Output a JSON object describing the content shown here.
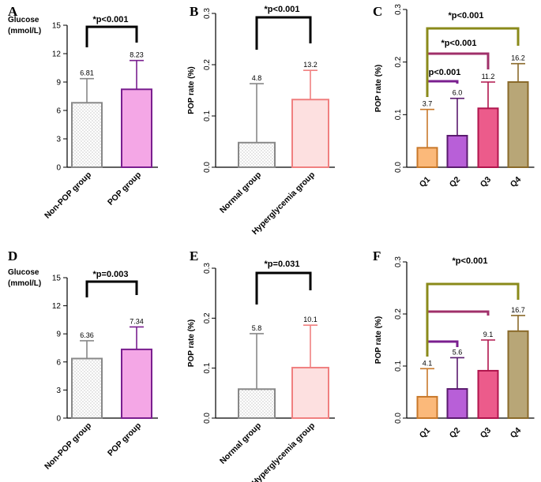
{
  "chart_data": [
    {
      "panel": "A",
      "type": "bar",
      "ylabel_lines": [
        "Glucose",
        "(mmol/L)"
      ],
      "ylabel_style": "top",
      "ylim": [
        0,
        15
      ],
      "yticks": [
        0,
        3,
        6,
        9,
        12,
        15
      ],
      "categories": [
        "Non-POP group",
        "POP group"
      ],
      "values": [
        6.81,
        8.23
      ],
      "errors": [
        2.55,
        3.05
      ],
      "value_labels": [
        "6.81",
        "8.23"
      ],
      "bar_fill": [
        "#ffffff",
        "#f4a7e6"
      ],
      "bar_stroke": [
        "#888888",
        "#7a1f8f"
      ],
      "dotted": [
        true,
        false
      ],
      "brackets": [
        {
          "from": 0,
          "to": 1,
          "label": "*p<0.001",
          "color": "#000000"
        }
      ]
    },
    {
      "panel": "B",
      "type": "bar",
      "ylabel_lines": [
        "POP rate (%)"
      ],
      "ylabel_style": "rotated",
      "ylim": [
        0,
        0.3
      ],
      "yticks": [
        0.0,
        0.1,
        0.2,
        0.3
      ],
      "ytick_labels": [
        "0.0",
        "0.1",
        "0.2",
        "0.3"
      ],
      "categories": [
        "Normal group",
        "Hyperglycemia group"
      ],
      "values": [
        0.048,
        0.132
      ],
      "errors": [
        0.115,
        0.057
      ],
      "value_labels": [
        "4.8",
        "13.2"
      ],
      "bar_fill": [
        "#ffffff",
        "#fde0e0"
      ],
      "bar_stroke": [
        "#888888",
        "#f08080"
      ],
      "dotted": [
        true,
        false
      ],
      "brackets": [
        {
          "from": 0,
          "to": 1,
          "label": "*p<0.001",
          "color": "#000000"
        }
      ]
    },
    {
      "panel": "C",
      "type": "bar",
      "ylabel_lines": [
        "POP rate (%)"
      ],
      "ylabel_style": "rotated",
      "ylim": [
        0,
        0.3
      ],
      "yticks": [
        0.0,
        0.1,
        0.2,
        0.3
      ],
      "ytick_labels": [
        "0.0",
        "0.1",
        "0.2",
        "0.3"
      ],
      "categories": [
        "Q1",
        "Q2",
        "Q3",
        "Q4"
      ],
      "values": [
        0.037,
        0.06,
        0.112,
        0.162
      ],
      "errors": [
        0.073,
        0.071,
        0.05,
        0.035
      ],
      "value_labels": [
        "3.7",
        "6.0",
        "11.2",
        "16.2"
      ],
      "bar_fill": [
        "#fbb97a",
        "#b85fd8",
        "#ec5b8b",
        "#b8a677"
      ],
      "bar_stroke": [
        "#c8782a",
        "#5a1a6e",
        "#b0154d",
        "#8a6a2a"
      ],
      "dotted": [
        false,
        false,
        false,
        false
      ],
      "brackets": [
        {
          "from": 0,
          "to": 1,
          "label": "p<0.001",
          "color": "#7a1f8f"
        },
        {
          "from": 0,
          "to": 2,
          "label": "*p<0.001",
          "color": "#a0306a"
        },
        {
          "from": 0,
          "to": 3,
          "label": "*p<0.001",
          "color": "#8a8a1a"
        }
      ]
    },
    {
      "panel": "D",
      "type": "bar",
      "ylabel_lines": [
        "Glucose",
        "(mmol/L)"
      ],
      "ylabel_style": "top",
      "ylim": [
        0,
        15
      ],
      "yticks": [
        0,
        3,
        6,
        9,
        12,
        15
      ],
      "categories": [
        "Non-POP group",
        "POP group"
      ],
      "values": [
        6.36,
        7.34
      ],
      "errors": [
        1.9,
        2.4
      ],
      "value_labels": [
        "6.36",
        "7.34"
      ],
      "bar_fill": [
        "#ffffff",
        "#f4a7e6"
      ],
      "bar_stroke": [
        "#888888",
        "#7a1f8f"
      ],
      "dotted": [
        true,
        false
      ],
      "brackets": [
        {
          "from": 0,
          "to": 1,
          "label": "*p=0.003",
          "color": "#000000"
        }
      ]
    },
    {
      "panel": "E",
      "type": "bar",
      "ylabel_lines": [
        "POP rate (%)"
      ],
      "ylabel_style": "rotated",
      "ylim": [
        0,
        0.3
      ],
      "yticks": [
        0.0,
        0.1,
        0.2,
        0.3
      ],
      "ytick_labels": [
        "0.0",
        "0.1",
        "0.2",
        "0.3"
      ],
      "categories": [
        "Normal group",
        "Hyperglycemia group"
      ],
      "values": [
        0.058,
        0.101
      ],
      "errors": [
        0.111,
        0.085
      ],
      "value_labels": [
        "5.8",
        "10.1"
      ],
      "bar_fill": [
        "#ffffff",
        "#fde0e0"
      ],
      "bar_stroke": [
        "#888888",
        "#f08080"
      ],
      "dotted": [
        true,
        false
      ],
      "brackets": [
        {
          "from": 0,
          "to": 1,
          "label": "*p=0.031",
          "color": "#000000"
        }
      ]
    },
    {
      "panel": "F",
      "type": "bar",
      "ylabel_lines": [
        "POP rate (%)"
      ],
      "ylabel_style": "rotated",
      "ylim": [
        0,
        0.3
      ],
      "yticks": [
        0.0,
        0.1,
        0.2,
        0.3
      ],
      "ytick_labels": [
        "0.0",
        "0.1",
        "0.2",
        "0.3"
      ],
      "categories": [
        "Q1",
        "Q2",
        "Q3",
        "Q4"
      ],
      "values": [
        0.041,
        0.056,
        0.091,
        0.167
      ],
      "errors": [
        0.054,
        0.06,
        0.059,
        0.03
      ],
      "value_labels": [
        "4.1",
        "5.6",
        "9.1",
        "16.7"
      ],
      "bar_fill": [
        "#fbb97a",
        "#b85fd8",
        "#ec5b8b",
        "#b8a677"
      ],
      "bar_stroke": [
        "#c8782a",
        "#5a1a6e",
        "#b0154d",
        "#8a6a2a"
      ],
      "dotted": [
        false,
        false,
        false,
        false
      ],
      "brackets": [
        {
          "from": 0,
          "to": 1,
          "label": "",
          "color": "#7a1f8f"
        },
        {
          "from": 0,
          "to": 2,
          "label": "",
          "color": "#a0306a"
        },
        {
          "from": 0,
          "to": 3,
          "label": "*p<0.001",
          "color": "#8a8a1a"
        }
      ]
    }
  ]
}
